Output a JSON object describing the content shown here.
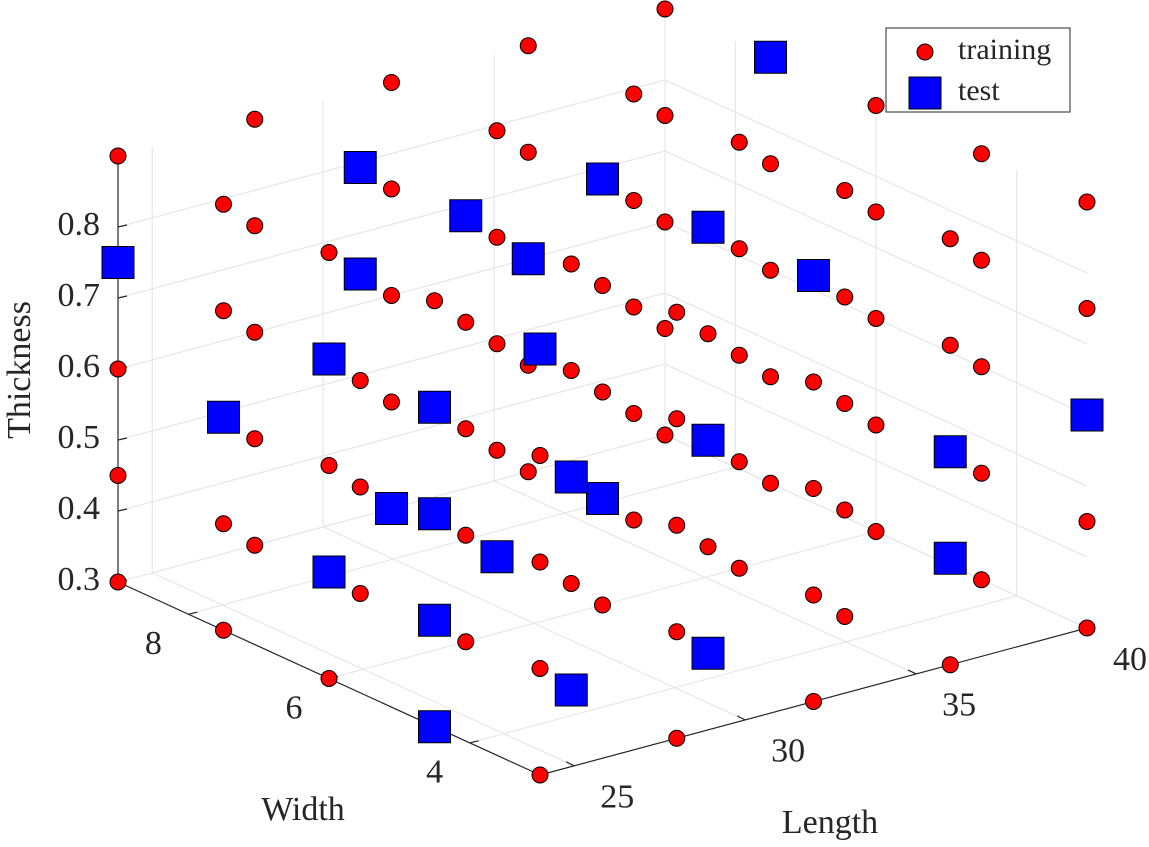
{
  "chart_data": {
    "type": "scatter3d",
    "xlabel": "Length",
    "ylabel": "Width",
    "zlabel": "Thickness",
    "xlim": [
      24,
      40
    ],
    "ylim": [
      3,
      9
    ],
    "zlim": [
      0.3,
      0.9
    ],
    "xticks": [
      25,
      30,
      35,
      40
    ],
    "yticks": [
      4,
      6,
      8
    ],
    "zticks": [
      0.3,
      0.4,
      0.5,
      0.6,
      0.7,
      0.8
    ],
    "grid": true,
    "legend": "northeast",
    "series": [
      {
        "name": "training",
        "color": "#ff0000",
        "marker": "circle",
        "x": [
          24,
          28,
          32,
          36,
          40,
          36,
          40,
          24,
          28,
          32,
          36,
          40,
          24,
          28,
          36,
          40,
          24,
          28,
          36,
          40,
          24,
          28,
          32,
          40,
          28,
          32,
          36,
          40,
          28,
          36,
          40,
          24,
          28,
          32,
          36,
          40,
          24,
          28,
          32,
          36,
          40,
          24,
          28,
          32,
          36,
          40,
          24,
          28,
          32,
          36,
          40,
          28,
          32,
          36,
          40,
          24,
          28,
          32,
          40,
          24,
          28,
          32,
          36,
          40,
          28,
          32,
          36,
          40,
          28,
          32,
          36,
          40,
          24,
          32,
          36,
          40,
          28,
          32,
          36,
          40,
          28,
          36,
          40,
          24,
          28,
          36,
          40,
          24,
          36,
          40,
          24,
          32,
          36,
          24,
          28,
          32,
          36,
          40
        ],
        "y": [
          3,
          3,
          3,
          3,
          3,
          4.5,
          4.5,
          6,
          6,
          6,
          6,
          6,
          7.5,
          7.5,
          7.5,
          7.5,
          9,
          9,
          9,
          9,
          3,
          3,
          3,
          3,
          4.5,
          4.5,
          4.5,
          4.5,
          6,
          6,
          6,
          7.5,
          7.5,
          7.5,
          7.5,
          7.5,
          9,
          9,
          9,
          9,
          9,
          3,
          3,
          3,
          4.5,
          4.5,
          6,
          6,
          6,
          6,
          6,
          7.5,
          7.5,
          7.5,
          7.5,
          9,
          9,
          9,
          9,
          3,
          3,
          3,
          3,
          3,
          4.5,
          4.5,
          4.5,
          4.5,
          6,
          6,
          6,
          6,
          7.5,
          7.5,
          7.5,
          7.5,
          9,
          9,
          9,
          9,
          3,
          3,
          3,
          4.5,
          4.5,
          4.5,
          4.5,
          6,
          6,
          6,
          7.5,
          7.5,
          7.5,
          9,
          9,
          9,
          9,
          9
        ],
        "z": [
          0.3,
          0.3,
          0.3,
          0.3,
          0.3,
          0.3,
          0.3,
          0.3,
          0.3,
          0.3,
          0.3,
          0.3,
          0.3,
          0.3,
          0.3,
          0.3,
          0.3,
          0.3,
          0.3,
          0.3,
          0.45,
          0.45,
          0.45,
          0.45,
          0.45,
          0.45,
          0.45,
          0.45,
          0.45,
          0.45,
          0.45,
          0.45,
          0.45,
          0.45,
          0.45,
          0.45,
          0.45,
          0.45,
          0.45,
          0.45,
          0.45,
          0.6,
          0.6,
          0.6,
          0.6,
          0.6,
          0.6,
          0.6,
          0.6,
          0.6,
          0.6,
          0.6,
          0.6,
          0.6,
          0.6,
          0.6,
          0.6,
          0.6,
          0.6,
          0.75,
          0.75,
          0.75,
          0.75,
          0.75,
          0.75,
          0.75,
          0.75,
          0.75,
          0.75,
          0.75,
          0.75,
          0.75,
          0.75,
          0.75,
          0.75,
          0.75,
          0.75,
          0.75,
          0.75,
          0.75,
          0.9,
          0.9,
          0.9,
          0.9,
          0.9,
          0.9,
          0.9,
          0.9,
          0.9,
          0.9,
          0.9,
          0.9,
          0.9,
          0.9,
          0.9,
          0.9,
          0.9,
          0.9
        ]
      },
      {
        "name": "test",
        "color": "#0000ff",
        "marker": "square",
        "x": [
          40,
          28,
          32,
          28,
          32,
          36,
          24,
          28,
          32,
          24,
          24,
          24,
          24,
          32,
          36,
          40,
          28,
          32,
          24,
          32,
          32,
          24,
          36,
          24,
          32,
          28,
          24
        ],
        "y": [
          7.5,
          7.5,
          6,
          6,
          4.5,
          9,
          9,
          7.5,
          3,
          6,
          3,
          7.5,
          4.5,
          4.5,
          3,
          3,
          4.5,
          9,
          4.5,
          6,
          7.5,
          6,
          3,
          4.5,
          4.5,
          4.5,
          4.5
        ],
        "z": [
          0.9,
          0.9,
          0.9,
          0.9,
          0.9,
          0.6,
          0.75,
          0.75,
          0.9,
          0.75,
          0.9,
          0.6,
          0.75,
          0.6,
          0.6,
          0.6,
          0.6,
          0.3,
          0.6,
          0.45,
          0.3,
          0.45,
          0.45,
          0.45,
          0.3,
          0.3,
          0.3
        ]
      }
    ]
  }
}
